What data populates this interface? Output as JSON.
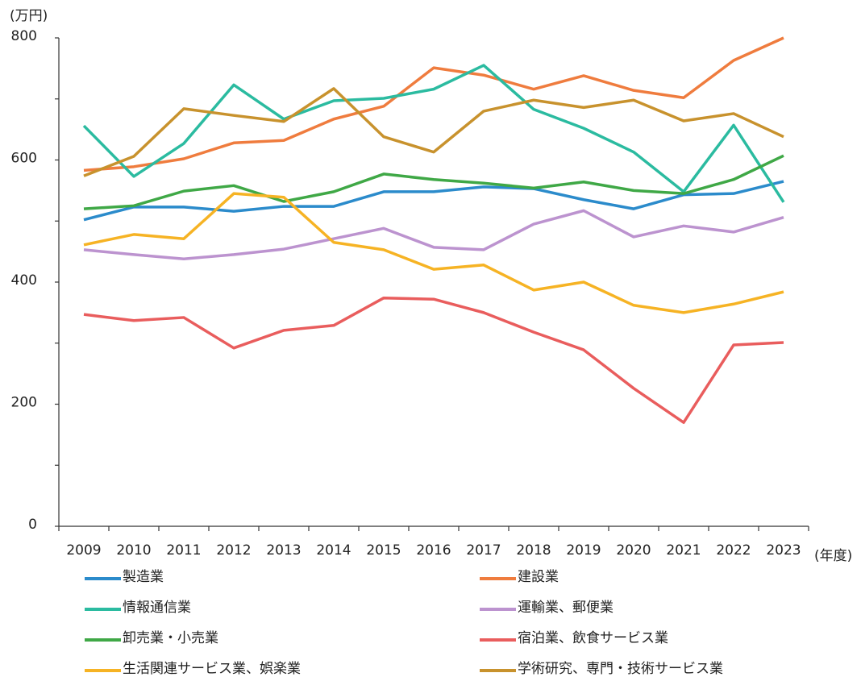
{
  "chart_data": {
    "type": "line",
    "y_label": "(万円)",
    "x_label": "(年度)",
    "categories": [
      "2009",
      "2010",
      "2011",
      "2012",
      "2013",
      "2014",
      "2015",
      "2016",
      "2017",
      "2018",
      "2019",
      "2020",
      "2021",
      "2022",
      "2023"
    ],
    "ylim": [
      0,
      800
    ],
    "yticks": [
      0,
      200,
      400,
      600,
      800
    ],
    "yticks_minor": [
      100,
      300,
      500,
      700
    ],
    "series": [
      {
        "name": "製造業",
        "color": "#2b8bcb",
        "values": [
          502,
          523,
          523,
          516,
          524,
          524,
          548,
          548,
          556,
          553,
          535,
          520,
          543,
          545,
          565
        ]
      },
      {
        "name": "建設業",
        "color": "#ef7c3e",
        "values": [
          583,
          589,
          602,
          628,
          632,
          667,
          688,
          751,
          739,
          716,
          738,
          714,
          702,
          763,
          800
        ]
      },
      {
        "name": "情報通信業",
        "color": "#2bbba0",
        "values": [
          656,
          573,
          627,
          723,
          667,
          697,
          701,
          716,
          755,
          683,
          652,
          613,
          548,
          657,
          531
        ]
      },
      {
        "name": "運輸業、郵便業",
        "color": "#bc93cf",
        "values": [
          453,
          445,
          438,
          445,
          454,
          471,
          488,
          457,
          453,
          495,
          517,
          474,
          492,
          482,
          506
        ]
      },
      {
        "name": "卸売業・小売業",
        "color": "#3fa846",
        "values": [
          520,
          525,
          549,
          558,
          532,
          548,
          577,
          568,
          562,
          554,
          564,
          550,
          545,
          568,
          607
        ]
      },
      {
        "name": "宿泊業、飲食サービス業",
        "color": "#e95d5d",
        "values": [
          347,
          337,
          342,
          292,
          321,
          329,
          374,
          372,
          350,
          318,
          289,
          226,
          170,
          297,
          301
        ]
      },
      {
        "name": "生活関連サービス業、娯楽業",
        "color": "#f6b324",
        "values": [
          461,
          478,
          471,
          545,
          539,
          465,
          453,
          421,
          428,
          387,
          400,
          362,
          350,
          364,
          384
        ]
      },
      {
        "name": "学術研究、専門・技術サービス業",
        "color": "#c8922d",
        "values": [
          574,
          606,
          684,
          673,
          663,
          717,
          638,
          613,
          680,
          698,
          686,
          698,
          664,
          676,
          638
        ]
      }
    ]
  }
}
